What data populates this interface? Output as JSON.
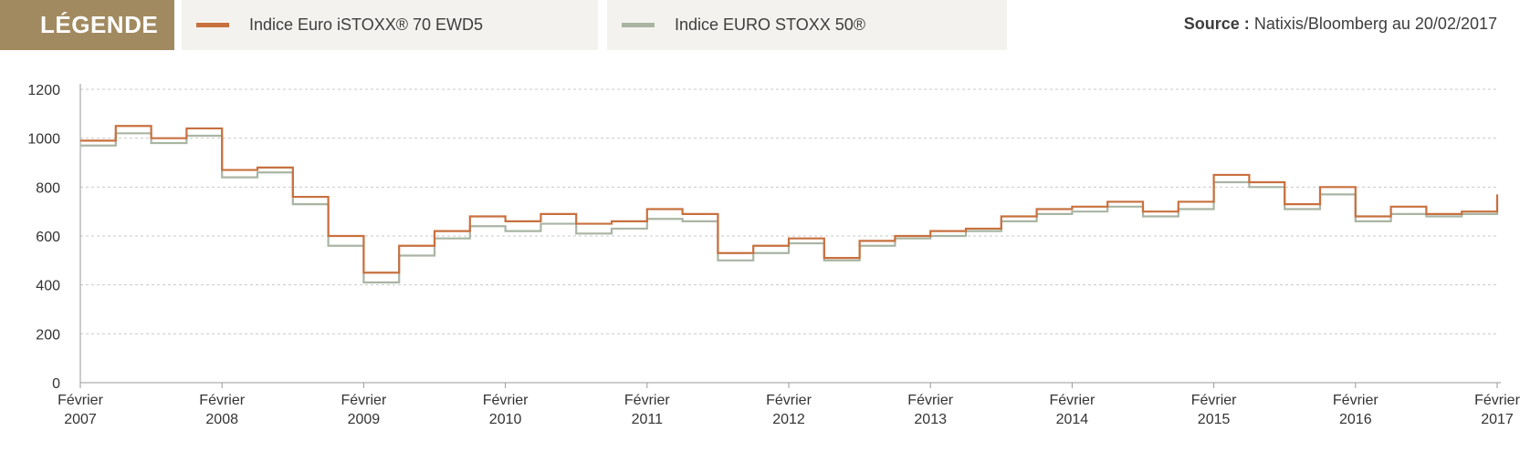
{
  "legend": {
    "title": "LÉGENDE",
    "items": [
      {
        "label": "Indice Euro iSTOXX® 70 EWD5",
        "color": "#c8703e"
      },
      {
        "label": "Indice EURO STOXX 50®",
        "color": "#a9b5a3"
      }
    ]
  },
  "source": {
    "prefix": "Source :",
    "text": "Natixis/Bloomberg au 20/02/2017"
  },
  "chart_data": {
    "type": "line",
    "title": "",
    "xlabel": "",
    "ylabel": "",
    "ylim": [
      0,
      1200
    ],
    "yticks": [
      "0",
      "200",
      "400",
      "600",
      "800",
      "1000",
      "1200"
    ],
    "xticks": [
      {
        "line1": "Février",
        "line2": "2007"
      },
      {
        "line1": "Février",
        "line2": "2008"
      },
      {
        "line1": "Février",
        "line2": "2009"
      },
      {
        "line1": "Février",
        "line2": "2010"
      },
      {
        "line1": "Février",
        "line2": "2011"
      },
      {
        "line1": "Février",
        "line2": "2012"
      },
      {
        "line1": "Février",
        "line2": "2013"
      },
      {
        "line1": "Février",
        "line2": "2014"
      },
      {
        "line1": "Février",
        "line2": "2015"
      },
      {
        "line1": "Février",
        "line2": "2016"
      },
      {
        "line1": "Février",
        "line2": "2017"
      }
    ],
    "grid": true,
    "x": [
      2007.0,
      2007.25,
      2007.5,
      2007.75,
      2008.0,
      2008.25,
      2008.5,
      2008.75,
      2009.0,
      2009.25,
      2009.5,
      2009.75,
      2010.0,
      2010.25,
      2010.5,
      2010.75,
      2011.0,
      2011.25,
      2011.5,
      2011.75,
      2012.0,
      2012.25,
      2012.5,
      2012.75,
      2013.0,
      2013.25,
      2013.5,
      2013.75,
      2014.0,
      2014.25,
      2014.5,
      2014.75,
      2015.0,
      2015.25,
      2015.5,
      2015.75,
      2016.0,
      2016.25,
      2016.5,
      2016.75,
      2017.0
    ],
    "series": [
      {
        "name": "Indice Euro iSTOXX® 70 EWD5",
        "color": "#c8703e",
        "values": [
          990,
          1050,
          1000,
          1040,
          870,
          880,
          760,
          600,
          450,
          560,
          620,
          680,
          660,
          690,
          650,
          660,
          710,
          690,
          530,
          560,
          590,
          510,
          580,
          600,
          620,
          630,
          680,
          710,
          720,
          740,
          700,
          740,
          850,
          820,
          730,
          800,
          680,
          720,
          690,
          700,
          770
        ]
      },
      {
        "name": "Indice EURO STOXX 50®",
        "color": "#a9b5a3",
        "values": [
          970,
          1020,
          980,
          1010,
          840,
          860,
          730,
          560,
          410,
          520,
          590,
          640,
          620,
          650,
          610,
          630,
          670,
          660,
          500,
          530,
          570,
          500,
          560,
          590,
          600,
          620,
          660,
          690,
          700,
          720,
          680,
          710,
          820,
          800,
          710,
          770,
          660,
          690,
          680,
          690,
          750
        ]
      }
    ]
  }
}
